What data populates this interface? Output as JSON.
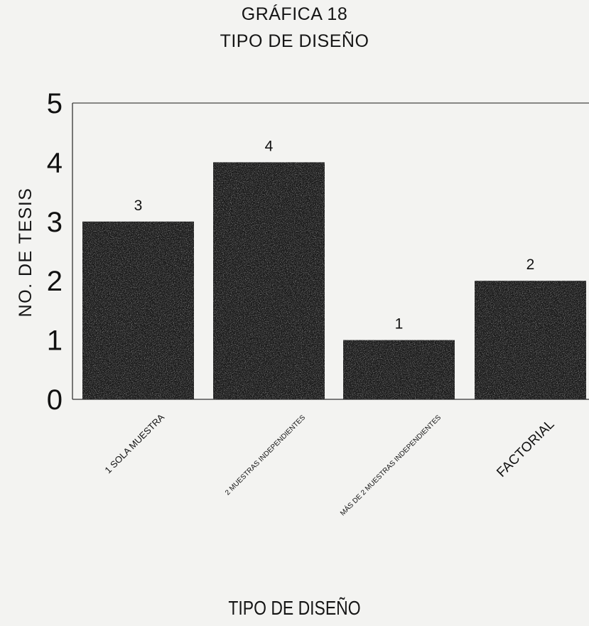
{
  "chart_data": {
    "type": "bar",
    "title": "GRÁFICA 18",
    "subtitle": "TIPO DE DISEÑO",
    "xlabel": "TIPO DE DISEÑO",
    "ylabel": "NO. DE TESIS",
    "categories": [
      "1 SOLA MUESTRA",
      "2 MUESTRAS INDEPENDIENTES",
      "MÁS DE 2 MUESTRAS INDEPENDIENTES",
      "FACTORIAL"
    ],
    "values": [
      3,
      4,
      1,
      2
    ],
    "data_labels": [
      "3",
      "4",
      "1",
      "2"
    ],
    "ylim": [
      0,
      5
    ],
    "yticks": [
      "0",
      "1",
      "2",
      "3",
      "4",
      "5"
    ],
    "grid": false,
    "legend": "none",
    "bar_color": "#1c1c1c"
  }
}
